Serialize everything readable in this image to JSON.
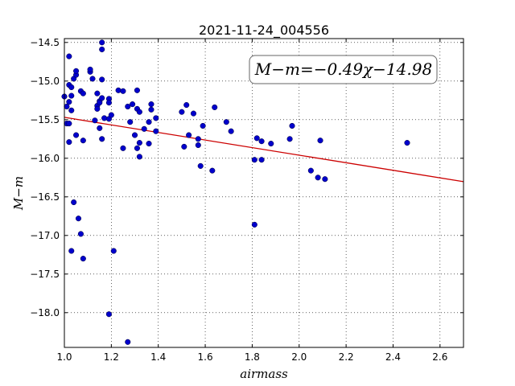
{
  "chart_data": {
    "type": "scatter",
    "title": "2021-11-24_004556",
    "xlabel": "airmass",
    "ylabel": "M−m",
    "annotation": "M−m=−0.49χ−14.98",
    "xlim": [
      1.0,
      2.7
    ],
    "ylim": [
      -18.45,
      -14.45
    ],
    "y_inverted": true,
    "grid": true,
    "x_ticks": [
      "1.0",
      "1.2",
      "1.4",
      "1.6",
      "1.8",
      "2.0",
      "2.2",
      "2.4",
      "2.6"
    ],
    "x_tick_values": [
      1.0,
      1.2,
      1.4,
      1.6,
      1.8,
      2.0,
      2.2,
      2.4,
      2.6
    ],
    "y_ticks": [
      "−14.5",
      "−15.0",
      "−15.5",
      "−16.0",
      "−16.5",
      "−17.0",
      "−17.5",
      "−18.0"
    ],
    "y_tick_values": [
      -14.5,
      -15.0,
      -15.5,
      -16.0,
      -16.5,
      -17.0,
      -17.5,
      -18.0
    ],
    "fit_line": {
      "slope": -0.49,
      "intercept": -14.98,
      "color": "#cc0000"
    },
    "point_color": "#0000cc",
    "points": [
      [
        1.0,
        -15.2
      ],
      [
        1.01,
        -15.55
      ],
      [
        1.01,
        -15.33
      ],
      [
        1.02,
        -15.27
      ],
      [
        1.02,
        -14.68
      ],
      [
        1.02,
        -15.05
      ],
      [
        1.02,
        -15.55
      ],
      [
        1.02,
        -15.79
      ],
      [
        1.03,
        -15.08
      ],
      [
        1.03,
        -15.19
      ],
      [
        1.03,
        -15.38
      ],
      [
        1.03,
        -17.2
      ],
      [
        1.04,
        -14.97
      ],
      [
        1.04,
        -16.57
      ],
      [
        1.05,
        -14.92
      ],
      [
        1.05,
        -14.87
      ],
      [
        1.05,
        -15.7
      ],
      [
        1.06,
        -16.78
      ],
      [
        1.07,
        -15.13
      ],
      [
        1.07,
        -16.98
      ],
      [
        1.08,
        -15.16
      ],
      [
        1.08,
        -15.77
      ],
      [
        1.08,
        -17.3
      ],
      [
        1.11,
        -14.88
      ],
      [
        1.11,
        -14.85
      ],
      [
        1.12,
        -14.97
      ],
      [
        1.13,
        -15.51
      ],
      [
        1.14,
        -15.16
      ],
      [
        1.14,
        -15.32
      ],
      [
        1.14,
        -15.36
      ],
      [
        1.15,
        -15.26
      ],
      [
        1.15,
        -15.28
      ],
      [
        1.15,
        -15.61
      ],
      [
        1.16,
        -14.5
      ],
      [
        1.16,
        -14.59
      ],
      [
        1.16,
        -14.98
      ],
      [
        1.16,
        -15.22
      ],
      [
        1.16,
        -15.75
      ],
      [
        1.17,
        -15.48
      ],
      [
        1.19,
        -15.49
      ],
      [
        1.19,
        -15.23
      ],
      [
        1.19,
        -15.28
      ],
      [
        1.19,
        -18.02
      ],
      [
        1.2,
        -15.44
      ],
      [
        1.21,
        -17.2
      ],
      [
        1.23,
        -15.12
      ],
      [
        1.25,
        -15.13
      ],
      [
        1.25,
        -15.87
      ],
      [
        1.27,
        -15.33
      ],
      [
        1.27,
        -18.38
      ],
      [
        1.28,
        -15.53
      ],
      [
        1.29,
        -15.3
      ],
      [
        1.3,
        -15.7
      ],
      [
        1.31,
        -15.12
      ],
      [
        1.31,
        -15.36
      ],
      [
        1.31,
        -15.87
      ],
      [
        1.32,
        -15.4
      ],
      [
        1.32,
        -15.8
      ],
      [
        1.32,
        -15.98
      ],
      [
        1.34,
        -15.62
      ],
      [
        1.36,
        -15.53
      ],
      [
        1.36,
        -15.81
      ],
      [
        1.37,
        -15.3
      ],
      [
        1.37,
        -15.37
      ],
      [
        1.39,
        -15.48
      ],
      [
        1.39,
        -15.65
      ],
      [
        1.5,
        -15.4
      ],
      [
        1.51,
        -15.85
      ],
      [
        1.52,
        -15.31
      ],
      [
        1.53,
        -15.7
      ],
      [
        1.55,
        -15.42
      ],
      [
        1.57,
        -15.75
      ],
      [
        1.57,
        -15.83
      ],
      [
        1.58,
        -16.1
      ],
      [
        1.59,
        -15.58
      ],
      [
        1.63,
        -16.16
      ],
      [
        1.64,
        -15.34
      ],
      [
        1.69,
        -15.53
      ],
      [
        1.71,
        -15.65
      ],
      [
        1.81,
        -16.02
      ],
      [
        1.81,
        -16.86
      ],
      [
        1.82,
        -15.74
      ],
      [
        1.84,
        -15.78
      ],
      [
        1.84,
        -16.02
      ],
      [
        1.88,
        -15.81
      ],
      [
        1.96,
        -15.75
      ],
      [
        1.97,
        -15.58
      ],
      [
        2.05,
        -16.16
      ],
      [
        2.08,
        -16.25
      ],
      [
        2.09,
        -15.77
      ],
      [
        2.11,
        -16.27
      ],
      [
        2.46,
        -15.8
      ]
    ]
  }
}
